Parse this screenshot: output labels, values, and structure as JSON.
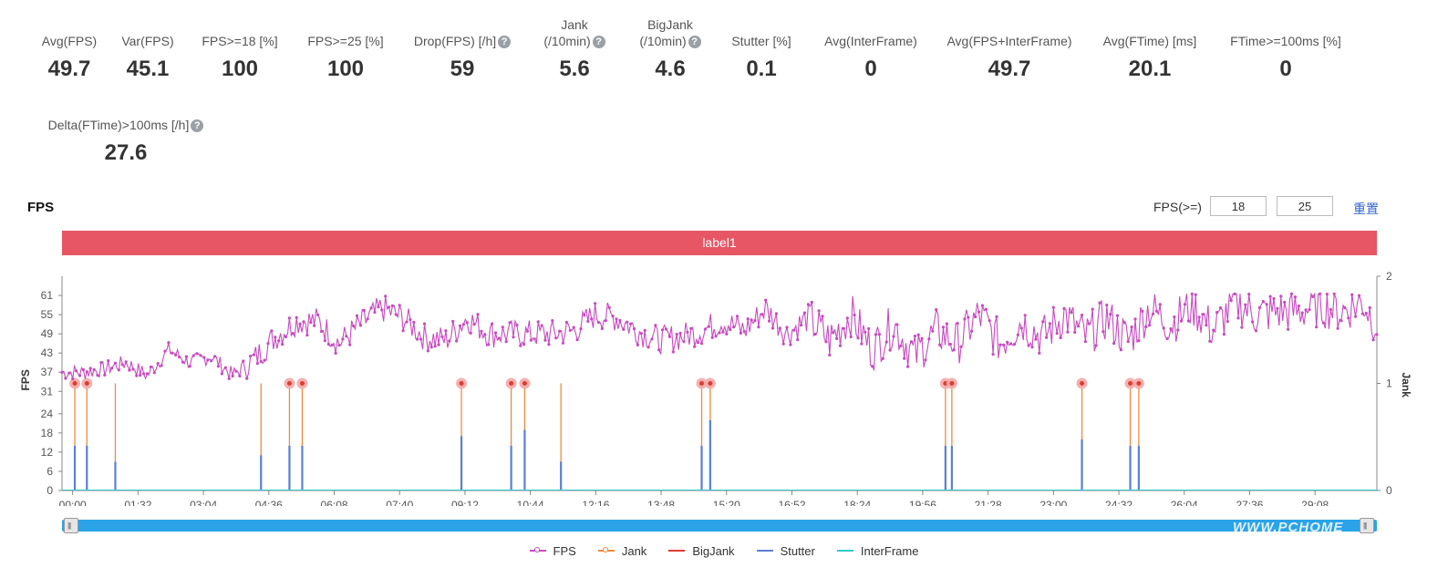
{
  "metrics": [
    {
      "label": "Avg(FPS)",
      "value": "49.7"
    },
    {
      "label": "Var(FPS)",
      "value": "45.1"
    },
    {
      "label": "FPS>=18 [%]",
      "value": "100"
    },
    {
      "label": "FPS>=25 [%]",
      "value": "100"
    },
    {
      "label": "Drop(FPS) [/h]",
      "value": "59",
      "help": true
    },
    {
      "label": "Jank\n(/10min)",
      "value": "5.6",
      "help": true
    },
    {
      "label": "BigJank\n(/10min)",
      "value": "4.6",
      "help": true
    },
    {
      "label": "Stutter [%]",
      "value": "0.1"
    },
    {
      "label": "Avg(InterFrame)",
      "value": "0"
    },
    {
      "label": "Avg(FPS+InterFrame)",
      "value": "49.7"
    },
    {
      "label": "Avg(FTime) [ms]",
      "value": "20.1"
    },
    {
      "label": "FTime>=100ms [%]",
      "value": "0"
    },
    {
      "label": "Delta(FTime)>100ms [/h]",
      "value": "27.6",
      "help": true
    }
  ],
  "controls": {
    "chart_title": "FPS",
    "threshold_label": "FPS(>=)",
    "threshold_low": "18",
    "threshold_high": "25",
    "reset_label": "重置",
    "band_label": "label1",
    "help_glyph": "?"
  },
  "watermark": "WWW.PCHOME",
  "colors": {
    "fps": "#c74bc0",
    "jank": "#f08a3c",
    "bigjank": "#e03c31",
    "stutter": "#5b7fd6",
    "interframe": "#35c8c8",
    "label_band": "#e65665",
    "scrollbar": "#2aa3e8",
    "jank_marker_halo": "#f4a9a9"
  },
  "chart_data": {
    "type": "line",
    "xlabel": "",
    "ylabel": "FPS",
    "y2label": "Jank",
    "x_ticks": [
      "00:00",
      "01:32",
      "03:04",
      "04:36",
      "06:08",
      "07:40",
      "09:12",
      "10:44",
      "12:16",
      "13:48",
      "15:20",
      "16:52",
      "18:24",
      "19:56",
      "21:28",
      "23:00",
      "24:32",
      "26:04",
      "27:36",
      "29:08"
    ],
    "y_ticks": [
      0,
      6,
      12,
      18,
      24,
      31,
      37,
      43,
      49,
      55,
      61
    ],
    "ylim": [
      0,
      67
    ],
    "y2_ticks": [
      0,
      1,
      2
    ],
    "y2lim": [
      0,
      2
    ],
    "xlim_seconds": [
      0,
      1850
    ],
    "legend": [
      "FPS",
      "Jank",
      "BigJank",
      "Stutter",
      "InterFrame"
    ],
    "legend_position": "bottom",
    "fps_series": {
      "name": "FPS",
      "x_seconds": [
        0,
        30,
        60,
        90,
        120,
        150,
        180,
        210,
        240,
        270,
        300,
        330,
        360,
        390,
        420,
        450,
        480,
        510,
        540,
        570,
        600,
        630,
        660,
        690,
        720,
        750,
        780,
        810,
        840,
        870,
        900,
        930,
        960,
        990,
        1020,
        1050,
        1080,
        1110,
        1140,
        1170,
        1200,
        1230,
        1260,
        1290,
        1320,
        1350,
        1380,
        1410,
        1440,
        1470,
        1500,
        1530,
        1560,
        1590,
        1620,
        1650,
        1680,
        1710,
        1740,
        1770,
        1800,
        1830,
        1850
      ],
      "values": [
        37,
        37,
        38,
        40,
        36,
        44,
        40,
        42,
        36,
        41,
        48,
        53,
        53,
        46,
        52,
        57,
        54,
        48,
        47,
        54,
        49,
        49,
        49,
        49,
        50,
        55,
        54,
        50,
        47,
        48,
        50,
        53,
        50,
        57,
        49,
        54,
        47,
        55,
        44,
        52,
        42,
        50,
        46,
        55,
        46,
        53,
        48,
        55,
        48,
        54,
        47,
        57,
        52,
        58,
        50,
        59,
        55,
        56,
        56,
        58,
        56,
        59,
        52
      ]
    },
    "jank_events_seconds": [
      18,
      35,
      75,
      280,
      320,
      338,
      562,
      632,
      651,
      702,
      900,
      912,
      1243,
      1252,
      1435,
      1503,
      1515
    ],
    "big_jank_events_seconds": [
      18,
      35,
      320,
      338,
      562,
      632,
      651,
      900,
      912,
      1243,
      1252,
      1435,
      1503,
      1515
    ],
    "stutter_spike_fps_units": [
      14,
      14,
      9,
      11,
      14,
      14,
      17,
      14,
      19,
      9,
      14,
      22,
      14,
      14,
      16,
      14,
      14
    ],
    "interframe_value": 0
  }
}
